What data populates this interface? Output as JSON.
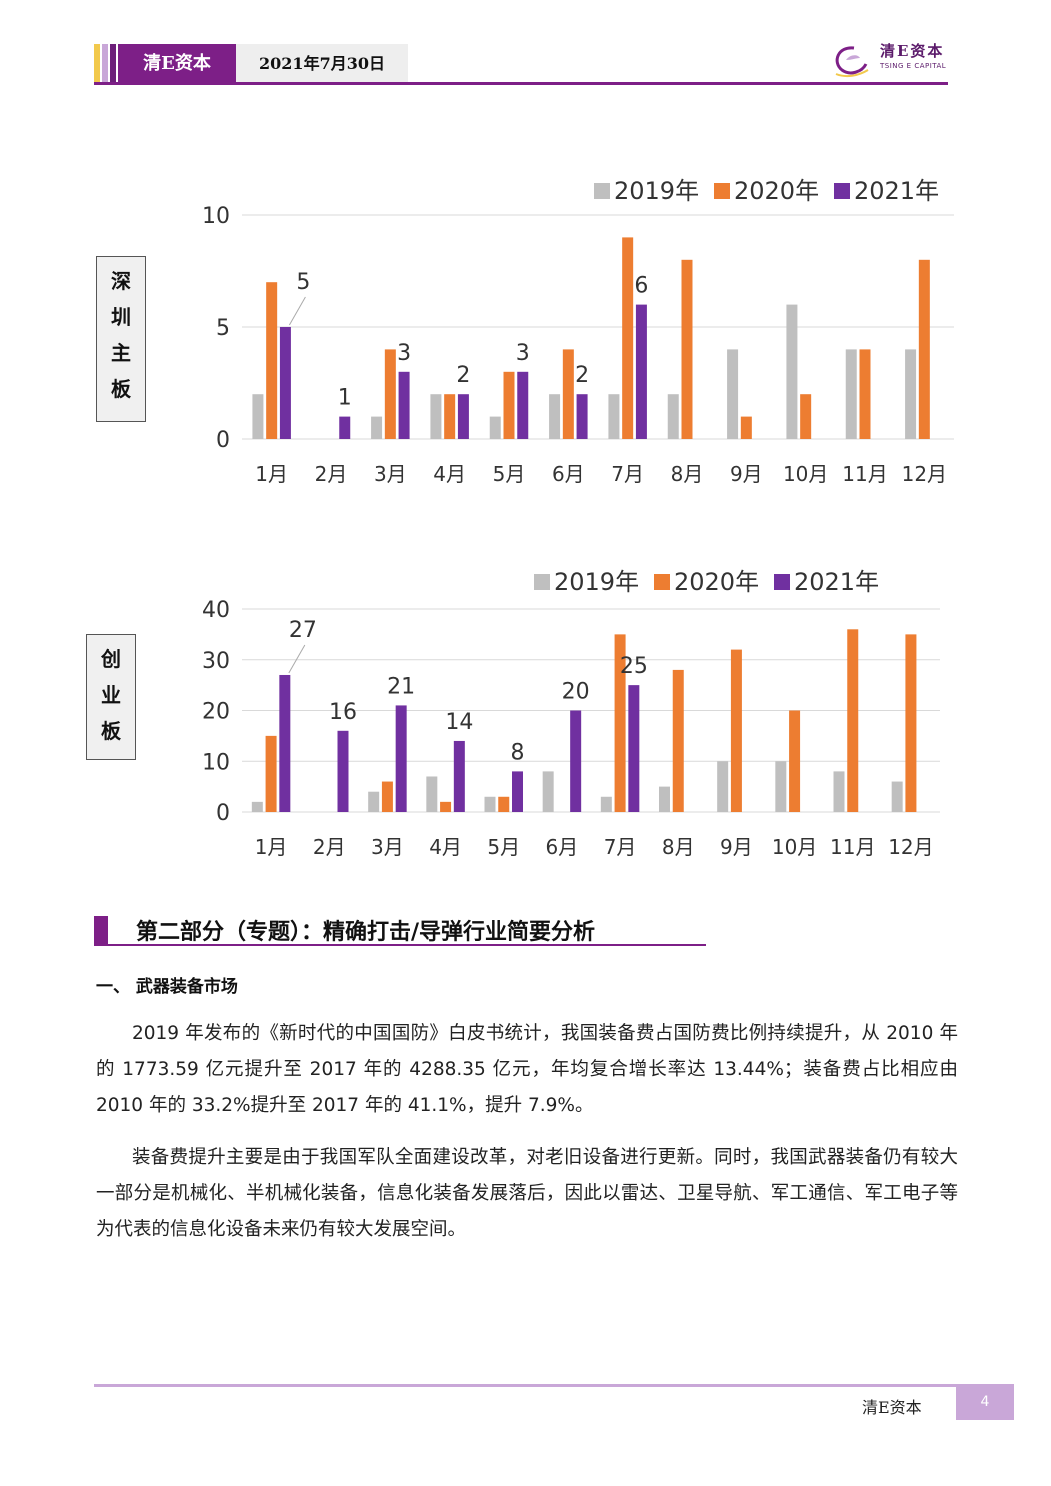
{
  "header": {
    "brand": "清E资本",
    "date": "2021年7月30日",
    "logo_text": "清E资本",
    "logo_sub": "TSING E CAPITAL"
  },
  "colors": {
    "s2019": "#bfbfbf",
    "s2020": "#ed7d31",
    "s2021": "#7030a0",
    "accent": "#7d1f87"
  },
  "chart_data": [
    {
      "type": "bar",
      "side_label": "深圳主板",
      "categories": [
        "1月",
        "2月",
        "3月",
        "4月",
        "5月",
        "6月",
        "7月",
        "8月",
        "9月",
        "10月",
        "11月",
        "12月"
      ],
      "series": [
        {
          "name": "2019年",
          "values": [
            2,
            0,
            1,
            2,
            1,
            2,
            2,
            2,
            4,
            6,
            4,
            4
          ]
        },
        {
          "name": "2020年",
          "values": [
            7,
            0,
            4,
            2,
            3,
            4,
            9,
            8,
            1,
            2,
            4,
            8
          ]
        },
        {
          "name": "2021年",
          "values": [
            5,
            1,
            3,
            2,
            3,
            2,
            6,
            null,
            null,
            null,
            null,
            null
          ]
        }
      ],
      "data_labels": [
        "5",
        "1",
        "3",
        "2",
        "3",
        "2",
        "6"
      ],
      "yticks": [
        "0",
        "5",
        "10"
      ],
      "ylim": [
        0,
        10
      ],
      "legend": "top-right",
      "grid": true
    },
    {
      "type": "bar",
      "side_label": "创业板",
      "categories": [
        "1月",
        "2月",
        "3月",
        "4月",
        "5月",
        "6月",
        "7月",
        "8月",
        "9月",
        "10月",
        "11月",
        "12月"
      ],
      "series": [
        {
          "name": "2019年",
          "values": [
            2,
            0,
            4,
            7,
            3,
            8,
            3,
            5,
            10,
            10,
            8,
            6
          ]
        },
        {
          "name": "2020年",
          "values": [
            15,
            0,
            6,
            2,
            3,
            0,
            35,
            28,
            32,
            20,
            36,
            35
          ]
        },
        {
          "name": "2021年",
          "values": [
            27,
            16,
            21,
            14,
            8,
            20,
            25,
            null,
            null,
            null,
            null,
            null
          ]
        }
      ],
      "data_labels": [
        "27",
        "16",
        "21",
        "14",
        "8",
        "20",
        "25"
      ],
      "yticks": [
        "0",
        "10",
        "20",
        "30",
        "40"
      ],
      "ylim": [
        0,
        40
      ],
      "legend": "top-right",
      "grid": true
    }
  ],
  "section": {
    "title": "第二部分（专题）：精确打击/导弹行业简要分析"
  },
  "subsection": {
    "title": "一、  武器装备市场"
  },
  "paragraphs": [
    "2019 年发布的《新时代的中国国防》白皮书统计，我国装备费占国防费比例持续提升，从 2010 年的 1773.59 亿元提升至 2017 年的 4288.35 亿元，年均复合增长率达 13.44%；装备费占比相应由 2010 年的 33.2%提升至 2017 年的 41.1%，提升 7.9%。",
    "装备费提升主要是由于我国军队全面建设改革，对老旧设备进行更新。同时，我国武器装备仍有较大一部分是机械化、半机械化装备，信息化装备发展落后，因此以雷达、卫星导航、军工通信、军工电子等为代表的信息化设备未来仍有较大发展空间。"
  ],
  "footer": {
    "brand": "清E资本",
    "page": "4"
  }
}
